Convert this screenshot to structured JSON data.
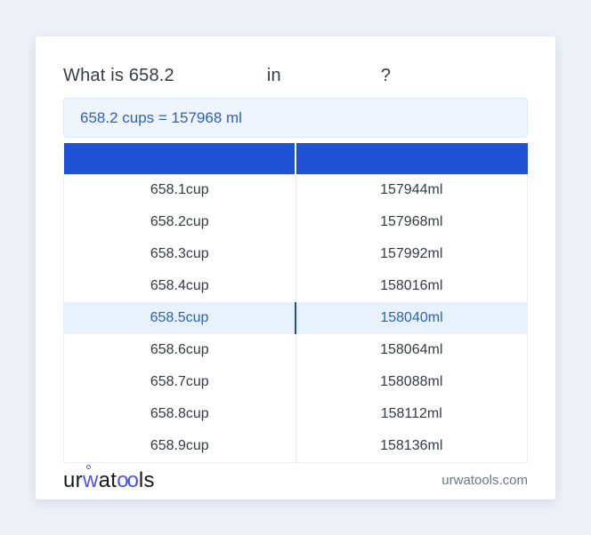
{
  "title": {
    "prefix": "What is 658.2",
    "connector": "in",
    "suffix": "?"
  },
  "result": {
    "text": "658.2 cups = 157968 ml"
  },
  "table": {
    "headers": [
      "",
      ""
    ],
    "highlighted_row_index": 4,
    "rows": [
      {
        "cup": "658.1cup",
        "ml": "157944ml"
      },
      {
        "cup": "658.2cup",
        "ml": "157968ml"
      },
      {
        "cup": "658.3cup",
        "ml": "157992ml"
      },
      {
        "cup": "658.4cup",
        "ml": "158016ml"
      },
      {
        "cup": "658.5cup",
        "ml": "158040ml"
      },
      {
        "cup": "658.6cup",
        "ml": "158064ml"
      },
      {
        "cup": "658.7cup",
        "ml": "158088ml"
      },
      {
        "cup": "658.8cup",
        "ml": "158112ml"
      },
      {
        "cup": "658.9cup",
        "ml": "158136ml"
      }
    ]
  },
  "footer": {
    "logo_parts": {
      "p1": "ur",
      "p2": "w",
      "p3": "at",
      "p4": "oo",
      "p5": "ls"
    },
    "website": "urwatools.com"
  },
  "colors": {
    "header_blue": "#2052d6",
    "accent_blue": "#2a62c4",
    "highlight_bg": "#e8f2fd",
    "result_bg": "#eef5fd",
    "logo_blue": "#4f55e6",
    "page_bg": "#edf0f7"
  }
}
